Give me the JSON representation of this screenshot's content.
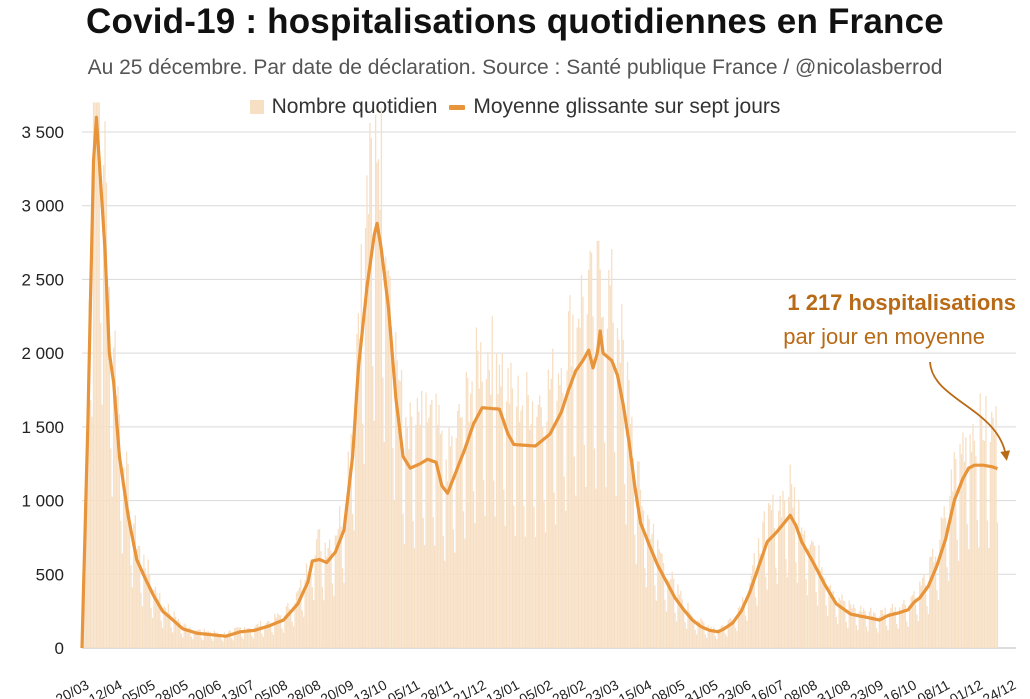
{
  "chart_data": {
    "type": "bar+line",
    "title": "Covid-19 : hospitalisations quotidiennes en France",
    "subtitle": "Au 25 décembre. Par date de déclaration. Source : Santé publique France / @nicolasberrod",
    "legend": {
      "bars": "Nombre quotidien",
      "line": "Moyenne glissante sur sept jours",
      "placement": "top-center"
    },
    "ylim": [
      0,
      3700
    ],
    "yticks": [
      0,
      500,
      1000,
      1500,
      2000,
      2500,
      3000,
      3500
    ],
    "ytick_labels": [
      "0",
      "500",
      "1 000",
      "1 500",
      "2 000",
      "2 500",
      "3 000",
      "3 500"
    ],
    "x_days_total": 645,
    "xticks": [
      {
        "label": "20/03",
        "day": 0
      },
      {
        "label": "12/04",
        "day": 23
      },
      {
        "label": "05/05",
        "day": 46
      },
      {
        "label": "28/05",
        "day": 69
      },
      {
        "label": "20/06",
        "day": 92
      },
      {
        "label": "13/07",
        "day": 115
      },
      {
        "label": "05/08",
        "day": 138
      },
      {
        "label": "28/08",
        "day": 161
      },
      {
        "label": "20/09",
        "day": 184
      },
      {
        "label": "13/10",
        "day": 207
      },
      {
        "label": "05/11",
        "day": 230
      },
      {
        "label": "28/11",
        "day": 253
      },
      {
        "label": "21/12",
        "day": 276
      },
      {
        "label": "13/01",
        "day": 299
      },
      {
        "label": "05/02",
        "day": 322
      },
      {
        "label": "28/02",
        "day": 345
      },
      {
        "label": "23/03",
        "day": 368
      },
      {
        "label": "15/04",
        "day": 391
      },
      {
        "label": "08/05",
        "day": 414
      },
      {
        "label": "31/05",
        "day": 437
      },
      {
        "label": "23/06",
        "day": 460
      },
      {
        "label": "16/07",
        "day": 483
      },
      {
        "label": "08/08",
        "day": 506
      },
      {
        "label": "31/08",
        "day": 529
      },
      {
        "label": "23/09",
        "day": 552
      },
      {
        "label": "16/10",
        "day": 575
      },
      {
        "label": "08/11",
        "day": 598
      },
      {
        "label": "01/12",
        "day": 621
      },
      {
        "label": "24/12",
        "day": 644
      }
    ],
    "moving_average_keypoints": [
      [
        0,
        0
      ],
      [
        4,
        1500
      ],
      [
        8,
        3300
      ],
      [
        10,
        3600
      ],
      [
        12,
        3300
      ],
      [
        16,
        2700
      ],
      [
        19,
        2000
      ],
      [
        22,
        1800
      ],
      [
        26,
        1300
      ],
      [
        32,
        900
      ],
      [
        38,
        600
      ],
      [
        44,
        470
      ],
      [
        50,
        350
      ],
      [
        56,
        250
      ],
      [
        62,
        200
      ],
      [
        70,
        130
      ],
      [
        80,
        100
      ],
      [
        90,
        90
      ],
      [
        100,
        80
      ],
      [
        110,
        110
      ],
      [
        120,
        120
      ],
      [
        130,
        150
      ],
      [
        140,
        190
      ],
      [
        150,
        300
      ],
      [
        157,
        450
      ],
      [
        160,
        590
      ],
      [
        165,
        600
      ],
      [
        170,
        580
      ],
      [
        176,
        650
      ],
      [
        182,
        800
      ],
      [
        188,
        1300
      ],
      [
        192,
        1900
      ],
      [
        198,
        2450
      ],
      [
        203,
        2800
      ],
      [
        205,
        2880
      ],
      [
        208,
        2700
      ],
      [
        213,
        2300
      ],
      [
        218,
        1700
      ],
      [
        223,
        1300
      ],
      [
        228,
        1220
      ],
      [
        235,
        1250
      ],
      [
        240,
        1280
      ],
      [
        246,
        1260
      ],
      [
        250,
        1100
      ],
      [
        254,
        1050
      ],
      [
        260,
        1200
      ],
      [
        266,
        1350
      ],
      [
        272,
        1520
      ],
      [
        278,
        1630
      ],
      [
        290,
        1620
      ],
      [
        296,
        1450
      ],
      [
        300,
        1380
      ],
      [
        315,
        1370
      ],
      [
        325,
        1450
      ],
      [
        333,
        1600
      ],
      [
        338,
        1750
      ],
      [
        343,
        1880
      ],
      [
        348,
        1950
      ],
      [
        352,
        2020
      ],
      [
        355,
        1900
      ],
      [
        358,
        2000
      ],
      [
        360,
        2150
      ],
      [
        362,
        2000
      ],
      [
        368,
        1950
      ],
      [
        372,
        1850
      ],
      [
        376,
        1650
      ],
      [
        380,
        1400
      ],
      [
        384,
        1100
      ],
      [
        388,
        850
      ],
      [
        394,
        700
      ],
      [
        400,
        560
      ],
      [
        406,
        450
      ],
      [
        412,
        340
      ],
      [
        418,
        260
      ],
      [
        424,
        190
      ],
      [
        430,
        145
      ],
      [
        436,
        120
      ],
      [
        442,
        110
      ],
      [
        446,
        130
      ],
      [
        452,
        170
      ],
      [
        458,
        250
      ],
      [
        464,
        380
      ],
      [
        470,
        550
      ],
      [
        476,
        720
      ],
      [
        482,
        780
      ],
      [
        488,
        850
      ],
      [
        492,
        900
      ],
      [
        496,
        830
      ],
      [
        500,
        720
      ],
      [
        508,
        580
      ],
      [
        516,
        430
      ],
      [
        524,
        300
      ],
      [
        534,
        230
      ],
      [
        544,
        210
      ],
      [
        554,
        190
      ],
      [
        560,
        220
      ],
      [
        568,
        240
      ],
      [
        574,
        260
      ],
      [
        578,
        310
      ],
      [
        582,
        340
      ],
      [
        588,
        420
      ],
      [
        594,
        560
      ],
      [
        600,
        740
      ],
      [
        606,
        1000
      ],
      [
        612,
        1150
      ],
      [
        616,
        1220
      ],
      [
        620,
        1240
      ],
      [
        626,
        1240
      ],
      [
        632,
        1230
      ],
      [
        636,
        1217
      ]
    ],
    "annotation": {
      "line1": "1 217 hospitalisations",
      "line2": "par jour en moyenne",
      "points_to_value": 1217
    }
  },
  "colors": {
    "bar": "#f7dfc4",
    "line": "#e8943a",
    "annotation": "#b86a16",
    "grid": "#d9d9d9"
  }
}
